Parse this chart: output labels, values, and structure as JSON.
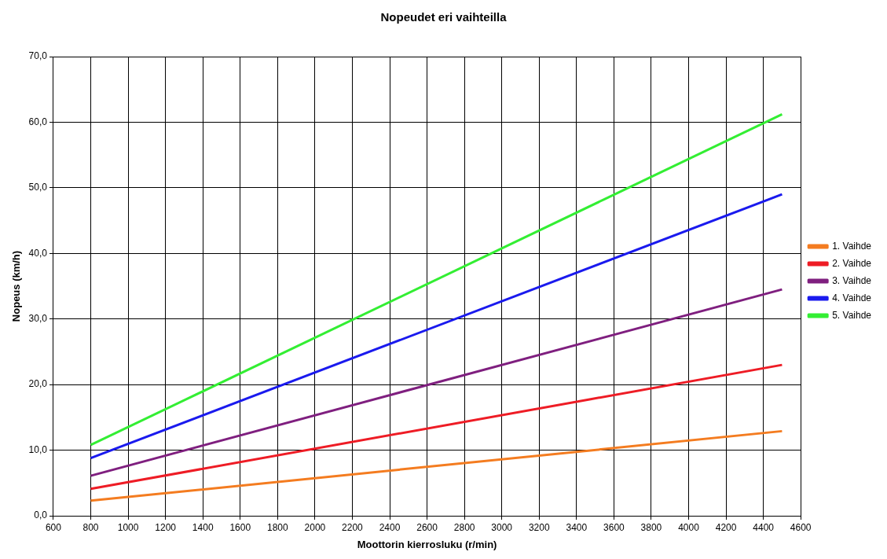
{
  "chart_data": {
    "type": "line",
    "title": "Nopeudet eri vaihteilla",
    "xlabel": "Moottorin kierrosluku (r/min)",
    "ylabel": "Nopeus (km/h)",
    "x": [
      800,
      4500
    ],
    "series": [
      {
        "name": "1. Vaihde",
        "color": "#f47c20",
        "values": [
          2.3,
          12.9
        ]
      },
      {
        "name": "2. Vaihde",
        "color": "#ee1c25",
        "values": [
          4.1,
          23.0
        ]
      },
      {
        "name": "3. Vaihde",
        "color": "#7f1f7f",
        "values": [
          6.1,
          34.5
        ]
      },
      {
        "name": "4. Vaihde",
        "color": "#1a1aee",
        "values": [
          8.8,
          49.0
        ]
      },
      {
        "name": "5. Vaihde",
        "color": "#33ee33",
        "values": [
          10.8,
          61.2
        ]
      }
    ],
    "xlim": [
      600,
      4600
    ],
    "xticks": [
      600,
      800,
      1000,
      1200,
      1400,
      1600,
      1800,
      2000,
      2200,
      2400,
      2600,
      2800,
      3000,
      3200,
      3400,
      3600,
      3800,
      4000,
      4200,
      4400,
      4600
    ],
    "ylim": [
      0,
      70
    ],
    "yticks": [
      {
        "value": 0,
        "label": "0,0"
      },
      {
        "value": 10,
        "label": "10,0"
      },
      {
        "value": 20,
        "label": "20,0"
      },
      {
        "value": 30,
        "label": "30,0"
      },
      {
        "value": 40,
        "label": "40,0"
      },
      {
        "value": 50,
        "label": "50,0"
      },
      {
        "value": 60,
        "label": "60,0"
      },
      {
        "value": 70,
        "label": "70,0"
      }
    ],
    "grid": true,
    "legend": "right",
    "marker": "none",
    "line_style": "solid"
  }
}
